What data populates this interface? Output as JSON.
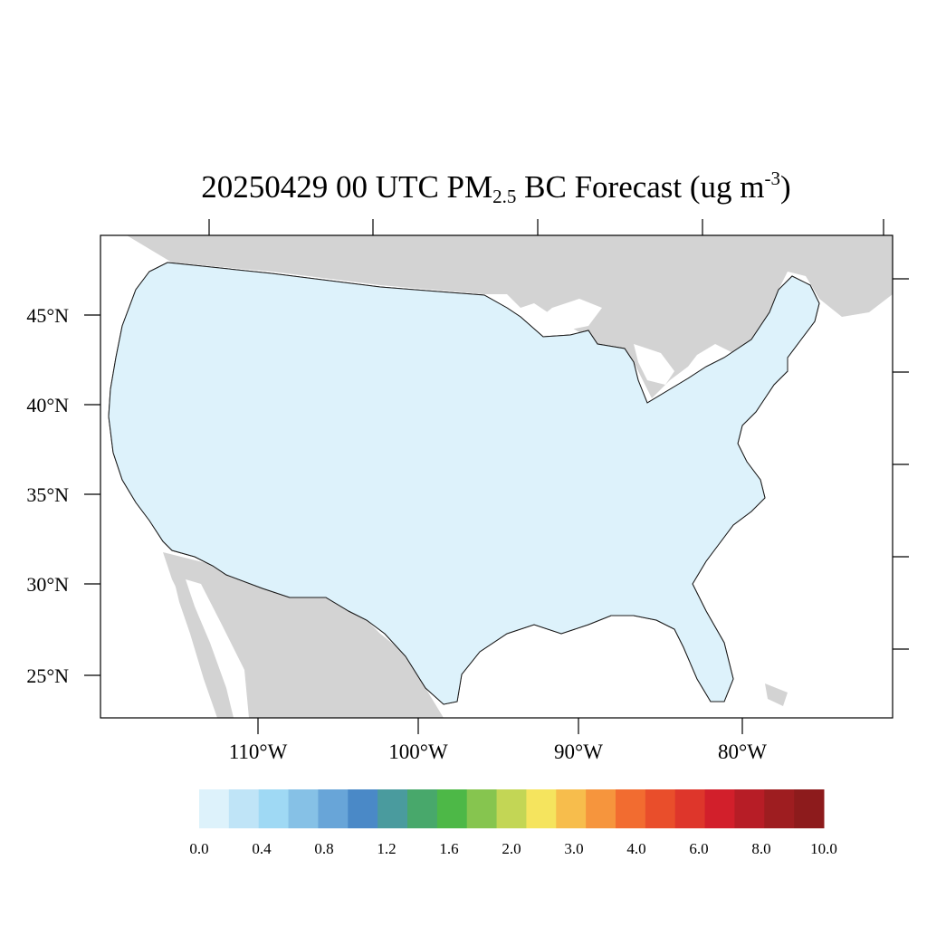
{
  "title": {
    "prefix": "20250429 00 UTC PM",
    "subscript": "2.5",
    "middle": " BC Forecast (ug m",
    "superscript": "-3",
    "suffix": ")"
  },
  "map": {
    "lat_labels": [
      "45°N",
      "40°N",
      "35°N",
      "30°N",
      "25°N"
    ],
    "lon_labels": [
      "110°W",
      "100°W",
      "90°W",
      "80°W"
    ],
    "colors": {
      "land_outside": "#d3d3d3",
      "ocean": "#ffffff",
      "lowest": "#ddf2fb",
      "second": "#bfe4f7",
      "third": "#9fd9f4",
      "fourth": "#86c1e6",
      "fifth": "#68a5d8",
      "sixth": "#4a89c7",
      "green": "#4db847",
      "orange": "#f6a340",
      "county_border": "#1a1a1a"
    }
  },
  "colorbar": {
    "colors": [
      "#ddf2fb",
      "#bfe4f7",
      "#9fd9f4",
      "#86c1e6",
      "#68a5d8",
      "#4a89c7",
      "#4a9b9e",
      "#48a86b",
      "#4db847",
      "#86c54f",
      "#c3d655",
      "#f5e45e",
      "#f7bd4c",
      "#f6953d",
      "#f26c30",
      "#e94e2b",
      "#de362b",
      "#d21f2b",
      "#b71d26",
      "#9e1d20",
      "#8d1b1c"
    ],
    "labels": [
      "0.0",
      "0.4",
      "0.8",
      "1.2",
      "1.6",
      "2.0",
      "3.0",
      "4.0",
      "6.0",
      "8.0",
      "10.0"
    ]
  }
}
